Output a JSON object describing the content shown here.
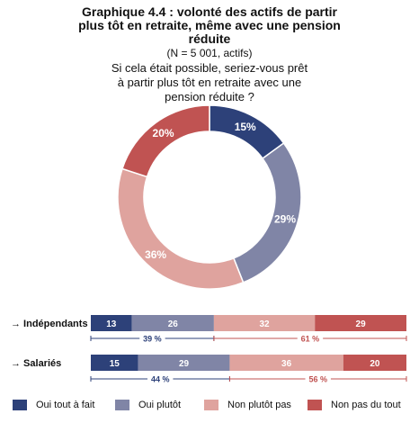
{
  "title": "Graphique 4.4 : volonté des actifs de partir plus tôt en retraite, même avec une pension réduite",
  "subtitle": "(N = 5 001, actifs)",
  "question": "Si cela était possible, seriez-vous prêt à partir plus tôt en retraite avec une pension réduite ?",
  "colors": {
    "oui_tout_a_fait": "#2d4179",
    "oui_plutot": "#8085a6",
    "non_plutot_pas": "#dfa39e",
    "non_pas_du_tout": "#c05352",
    "oui_bracket": "#2d4179",
    "non_bracket": "#c05352"
  },
  "chart_data": [
    {
      "type": "pie",
      "variant": "donut",
      "categories": [
        "Oui tout à fait",
        "Oui plutôt",
        "Non plutôt pas",
        "Non pas du tout"
      ],
      "values": [
        15,
        29,
        36,
        20
      ],
      "labels": [
        "15%",
        "29%",
        "36%",
        "20%"
      ]
    },
    {
      "type": "bar",
      "orientation": "horizontal",
      "stacked": true,
      "categories": [
        "Indépendants",
        "Salariés"
      ],
      "category_labels": [
        "→ Indépendants",
        "→ Salariés"
      ],
      "series": [
        {
          "name": "Oui tout à fait",
          "values": [
            13,
            15
          ]
        },
        {
          "name": "Oui plutôt",
          "values": [
            26,
            29
          ]
        },
        {
          "name": "Non plutôt pas",
          "values": [
            32,
            36
          ]
        },
        {
          "name": "Non pas du tout",
          "values": [
            29,
            20
          ]
        }
      ],
      "totals": {
        "oui": [
          39,
          44
        ],
        "non": [
          61,
          56
        ],
        "oui_labels": [
          "39 %",
          "44 %"
        ],
        "non_labels": [
          "61 %",
          "56 %"
        ]
      },
      "xlim": [
        0,
        100
      ]
    }
  ],
  "legend": [
    {
      "label": "Oui tout à fait",
      "color": "#2d4179"
    },
    {
      "label": "Oui plutôt",
      "color": "#8085a6"
    },
    {
      "label": "Non plutôt pas",
      "color": "#dfa39e"
    },
    {
      "label": "Non pas du tout",
      "color": "#c05352"
    }
  ]
}
